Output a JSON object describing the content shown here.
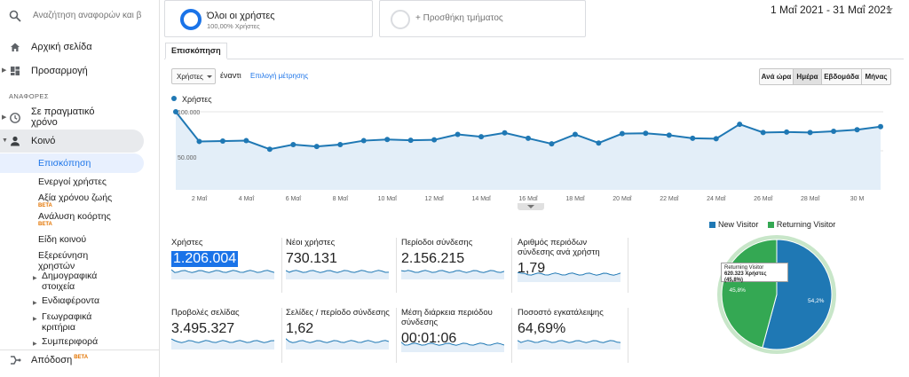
{
  "search": {
    "placeholder": "Αναζήτηση αναφορών και β"
  },
  "nav": {
    "home": "Αρχική σελίδα",
    "customization": "Προσαρμογή",
    "reports_section": "ΑΝΑΦΟΡΕΣ",
    "realtime": "Σε πραγματικό χρόνο",
    "audience": "Κοινό",
    "audience_items": {
      "overview": "Επισκόπηση",
      "active_users": "Ενεργοί χρήστες",
      "lifetime_value": "Αξία χρόνου ζωής",
      "cohort": "Ανάλυση κοόρτης",
      "user_types": "Είδη κοινού",
      "user_explorer": "Εξερεύνηση χρηστών",
      "demographics": "Δημογραφικά στοιχεία",
      "interests": "Ενδιαφέροντα",
      "geo": "Γεωγραφικά κριτήρια",
      "behavior": "Συμπεριφορά"
    },
    "beta": "BETA",
    "attribution": "Απόδοση"
  },
  "segments": {
    "all_users": "Όλοι οι χρήστες",
    "all_users_pct": "100,00% Χρήστες",
    "add_segment": "+ Προσθήκη τμήματος"
  },
  "date_range": "1 Μαΐ 2021 - 31 Μαΐ 2021",
  "tab_overview": "Επισκόπηση",
  "controls": {
    "metric": "Χρήστες",
    "versus": "έναντι",
    "choose_metric": "Επιλογή μέτρησης",
    "hourly": "Ανά ώρα",
    "day": "Ημέρα",
    "week": "Εβδομάδα",
    "month": "Μήνας"
  },
  "colors": {
    "accent": "#1a73e8",
    "series": "#1f78b4",
    "returning": "#34a853"
  },
  "chart_data": [
    {
      "type": "area",
      "series": [
        {
          "name": "Χρήστες",
          "values": [
            100000,
            62000,
            62500,
            63000,
            52000,
            58000,
            55500,
            58000,
            63000,
            64500,
            63500,
            64000,
            71000,
            68000,
            73000,
            66000,
            59000,
            71000,
            60000,
            72000,
            72500,
            70000,
            66000,
            65500,
            84000,
            73500,
            74000,
            73500,
            75000,
            77000,
            81000
          ]
        }
      ],
      "x": [
        "1",
        "2",
        "3",
        "4",
        "5",
        "6",
        "7",
        "8",
        "9",
        "10",
        "11",
        "12",
        "13",
        "14",
        "15",
        "16",
        "17",
        "18",
        "19",
        "20",
        "21",
        "22",
        "23",
        "24",
        "25",
        "26",
        "27",
        "28",
        "29",
        "30",
        "31"
      ],
      "x_tick_labels": [
        "2 Μαΐ",
        "4 Μαΐ",
        "6 Μαΐ",
        "8 Μαΐ",
        "10 Μαΐ",
        "12 Μαΐ",
        "14 Μαΐ",
        "16 Μαΐ",
        "18 Μαΐ",
        "20 Μαΐ",
        "22 Μαΐ",
        "24 Μαΐ",
        "26 Μαΐ",
        "28 Μαΐ",
        "30 Μ"
      ],
      "y_tick_labels": [
        "100.000",
        "50.000"
      ],
      "ylim": [
        0,
        100000
      ]
    },
    {
      "type": "pie",
      "categories": [
        "New Visitor",
        "Returning Visitor"
      ],
      "values": [
        54.2,
        45.8
      ],
      "slice_labels": [
        "54,2%",
        "45,8%"
      ],
      "tooltip_title": "Returning Visitor",
      "tooltip_value": "620.323 Χρήστες (45,8%)"
    }
  ],
  "scorecards": [
    {
      "label": "Χρήστες",
      "value": "1.206.004"
    },
    {
      "label": "Νέοι χρήστες",
      "value": "730.131"
    },
    {
      "label": "Περίοδοι σύνδεσης",
      "value": "2.156.215"
    },
    {
      "label": "Αριθμός περιόδων σύνδεσης ανά χρήστη",
      "value": "1,79"
    },
    {
      "label": "Προβολές σελίδας",
      "value": "3.495.327"
    },
    {
      "label": "Σελίδες / περίοδο σύνδεσης",
      "value": "1,62"
    },
    {
      "label": "Μέση διάρκεια περιόδου σύνδεσης",
      "value": "00:01:06"
    },
    {
      "label": "Ποσοστό εγκατάλειψης",
      "value": "64,69%"
    }
  ]
}
